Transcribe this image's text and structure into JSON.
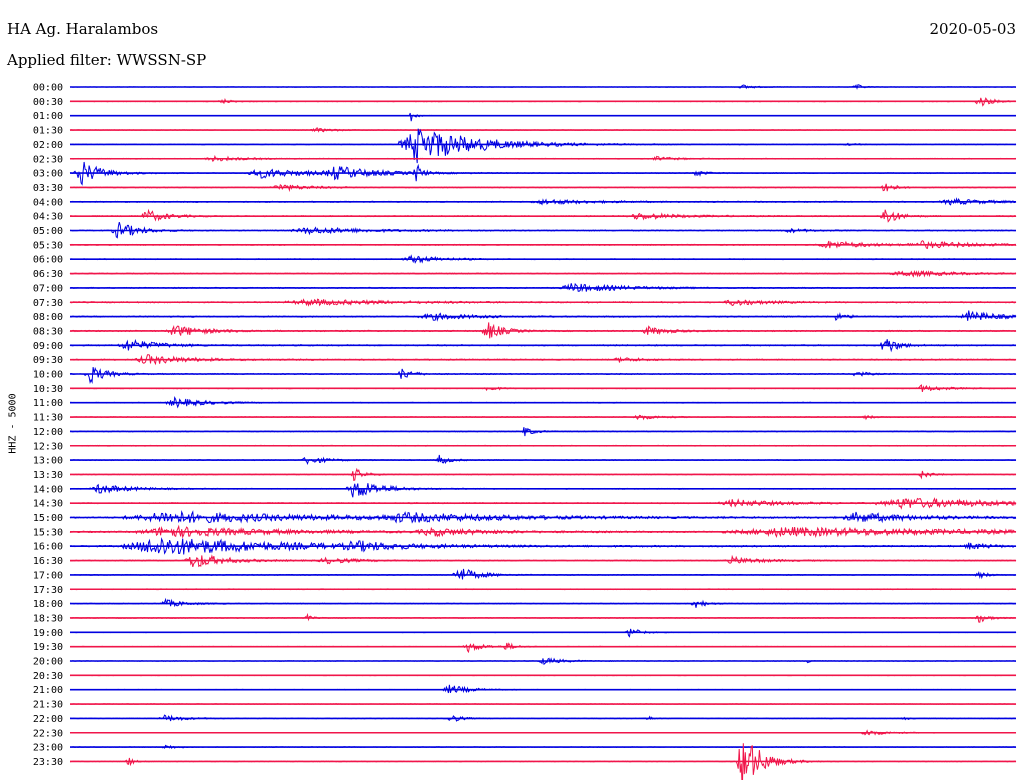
{
  "header": {
    "station": "HA Ag. Haralambos",
    "date": "2020-05-03",
    "filter": "Applied filter: WWSSN-SP",
    "channel": "HHZ - 5000"
  },
  "colors": {
    "odd": "#0000e0",
    "even": "#f0154a"
  },
  "chart_data": {
    "type": "line",
    "title": "",
    "xlabel": "",
    "ylabel": "HHZ - 5000",
    "rows": [
      {
        "label": "00:00",
        "level": 0.2,
        "events": [
          {
            "x": 0.71,
            "amp": 0.5,
            "w": 0.012
          },
          {
            "x": 0.83,
            "amp": 0.6,
            "w": 0.008
          }
        ]
      },
      {
        "label": "00:30",
        "level": 0.4,
        "events": [
          {
            "x": 0.16,
            "amp": 0.5,
            "w": 0.01
          },
          {
            "x": 0.96,
            "amp": 1.6,
            "w": 0.01
          }
        ]
      },
      {
        "label": "01:00",
        "level": 0.2,
        "events": [
          {
            "x": 0.36,
            "amp": 1.4,
            "w": 0.005
          }
        ]
      },
      {
        "label": "01:30",
        "level": 0.3,
        "events": [
          {
            "x": 0.26,
            "amp": 0.4,
            "w": 0.02
          }
        ]
      },
      {
        "label": "02:00",
        "level": 0.3,
        "events": [
          {
            "x": 0.365,
            "amp": 3.8,
            "w": 0.06
          },
          {
            "x": 0.82,
            "amp": 0.3,
            "w": 0.01
          }
        ]
      },
      {
        "label": "02:30",
        "level": 0.4,
        "events": [
          {
            "x": 0.15,
            "amp": 0.5,
            "w": 0.03
          },
          {
            "x": 0.62,
            "amp": 0.4,
            "w": 0.02
          }
        ]
      },
      {
        "label": "03:00",
        "level": 0.4,
        "events": [
          {
            "x": 0.01,
            "amp": 2.8,
            "w": 0.02
          },
          {
            "x": 0.2,
            "amp": 1.0,
            "w": 0.05
          },
          {
            "x": 0.28,
            "amp": 1.3,
            "w": 0.04
          },
          {
            "x": 0.365,
            "amp": 2.5,
            "w": 0.005
          },
          {
            "x": 0.66,
            "amp": 0.7,
            "w": 0.01
          }
        ]
      },
      {
        "label": "03:30",
        "level": 0.4,
        "events": [
          {
            "x": 0.22,
            "amp": 0.7,
            "w": 0.03
          },
          {
            "x": 0.86,
            "amp": 1.8,
            "w": 0.008
          }
        ]
      },
      {
        "label": "04:00",
        "level": 0.5,
        "events": [
          {
            "x": 0.5,
            "amp": 0.5,
            "w": 0.05
          },
          {
            "x": 0.93,
            "amp": 0.6,
            "w": 0.04
          }
        ]
      },
      {
        "label": "04:30",
        "level": 0.5,
        "events": [
          {
            "x": 0.08,
            "amp": 1.3,
            "w": 0.02
          },
          {
            "x": 0.6,
            "amp": 0.7,
            "w": 0.04
          },
          {
            "x": 0.86,
            "amp": 2.2,
            "w": 0.012
          }
        ]
      },
      {
        "label": "05:00",
        "level": 0.5,
        "events": [
          {
            "x": 0.05,
            "amp": 1.8,
            "w": 0.02
          },
          {
            "x": 0.25,
            "amp": 0.7,
            "w": 0.06
          },
          {
            "x": 0.76,
            "amp": 0.4,
            "w": 0.02
          }
        ]
      },
      {
        "label": "05:30",
        "level": 0.5,
        "events": [
          {
            "x": 0.8,
            "amp": 0.8,
            "w": 0.04
          },
          {
            "x": 0.9,
            "amp": 0.7,
            "w": 0.05
          }
        ]
      },
      {
        "label": "06:00",
        "level": 0.4,
        "events": [
          {
            "x": 0.36,
            "amp": 0.8,
            "w": 0.03
          }
        ]
      },
      {
        "label": "06:30",
        "level": 0.5,
        "events": [
          {
            "x": 0.88,
            "amp": 0.6,
            "w": 0.05
          }
        ]
      },
      {
        "label": "07:00",
        "level": 0.5,
        "events": [
          {
            "x": 0.53,
            "amp": 0.9,
            "w": 0.05
          }
        ]
      },
      {
        "label": "07:30",
        "level": 0.6,
        "events": [
          {
            "x": 0.25,
            "amp": 0.6,
            "w": 0.08
          },
          {
            "x": 0.7,
            "amp": 0.7,
            "w": 0.03
          }
        ]
      },
      {
        "label": "08:00",
        "level": 0.6,
        "events": [
          {
            "x": 0.38,
            "amp": 0.7,
            "w": 0.04
          },
          {
            "x": 0.81,
            "amp": 0.8,
            "w": 0.01
          },
          {
            "x": 0.95,
            "amp": 1.1,
            "w": 0.03
          }
        ]
      },
      {
        "label": "08:30",
        "level": 0.6,
        "events": [
          {
            "x": 0.11,
            "amp": 1.2,
            "w": 0.03
          },
          {
            "x": 0.44,
            "amp": 2.0,
            "w": 0.015
          },
          {
            "x": 0.61,
            "amp": 0.9,
            "w": 0.02
          }
        ]
      },
      {
        "label": "09:00",
        "level": 0.6,
        "events": [
          {
            "x": 0.06,
            "amp": 1.2,
            "w": 0.03
          },
          {
            "x": 0.86,
            "amp": 2.2,
            "w": 0.012
          }
        ]
      },
      {
        "label": "09:30",
        "level": 0.6,
        "events": [
          {
            "x": 0.08,
            "amp": 1.0,
            "w": 0.04
          },
          {
            "x": 0.58,
            "amp": 0.5,
            "w": 0.02
          }
        ]
      },
      {
        "label": "10:00",
        "level": 0.5,
        "events": [
          {
            "x": 0.02,
            "amp": 2.0,
            "w": 0.015
          },
          {
            "x": 0.35,
            "amp": 1.4,
            "w": 0.01
          },
          {
            "x": 0.83,
            "amp": 0.7,
            "w": 0.01
          }
        ]
      },
      {
        "label": "10:30",
        "level": 0.4,
        "events": [
          {
            "x": 0.44,
            "amp": 0.6,
            "w": 0.01
          },
          {
            "x": 0.9,
            "amp": 0.7,
            "w": 0.02
          }
        ]
      },
      {
        "label": "11:00",
        "level": 0.4,
        "events": [
          {
            "x": 0.11,
            "amp": 1.0,
            "w": 0.03
          }
        ]
      },
      {
        "label": "11:30",
        "level": 0.4,
        "events": [
          {
            "x": 0.6,
            "amp": 0.5,
            "w": 0.02
          },
          {
            "x": 0.84,
            "amp": 0.4,
            "w": 0.01
          }
        ]
      },
      {
        "label": "12:00",
        "level": 0.4,
        "events": [
          {
            "x": 0.48,
            "amp": 1.0,
            "w": 0.01
          }
        ]
      },
      {
        "label": "12:30",
        "level": 0.4,
        "events": []
      },
      {
        "label": "13:00",
        "level": 0.4,
        "events": [
          {
            "x": 0.25,
            "amp": 0.8,
            "w": 0.02
          },
          {
            "x": 0.39,
            "amp": 1.0,
            "w": 0.01
          }
        ]
      },
      {
        "label": "13:30",
        "level": 0.4,
        "events": [
          {
            "x": 0.3,
            "amp": 1.4,
            "w": 0.01
          },
          {
            "x": 0.9,
            "amp": 0.8,
            "w": 0.01
          }
        ]
      },
      {
        "label": "14:00",
        "level": 0.4,
        "events": [
          {
            "x": 0.03,
            "amp": 1.0,
            "w": 0.03
          },
          {
            "x": 0.3,
            "amp": 2.2,
            "w": 0.025
          }
        ]
      },
      {
        "label": "14:30",
        "level": 0.5,
        "events": [
          {
            "x": 0.7,
            "amp": 0.7,
            "w": 0.05
          },
          {
            "x": 0.88,
            "amp": 1.1,
            "w": 0.1
          }
        ]
      },
      {
        "label": "15:00",
        "level": 0.7,
        "events": [
          {
            "x": 0.1,
            "amp": 1.2,
            "w": 0.15
          },
          {
            "x": 0.35,
            "amp": 0.8,
            "w": 0.1
          },
          {
            "x": 0.83,
            "amp": 1.0,
            "w": 0.06
          }
        ]
      },
      {
        "label": "15:30",
        "level": 0.7,
        "events": [
          {
            "x": 0.1,
            "amp": 1.1,
            "w": 0.1
          },
          {
            "x": 0.38,
            "amp": 0.8,
            "w": 0.05
          },
          {
            "x": 0.75,
            "amp": 0.9,
            "w": 0.2
          }
        ]
      },
      {
        "label": "16:00",
        "level": 0.7,
        "events": [
          {
            "x": 0.09,
            "amp": 2.0,
            "w": 0.12
          },
          {
            "x": 0.3,
            "amp": 0.8,
            "w": 0.04
          },
          {
            "x": 0.95,
            "amp": 0.7,
            "w": 0.02
          }
        ]
      },
      {
        "label": "16:30",
        "level": 0.5,
        "events": [
          {
            "x": 0.13,
            "amp": 1.6,
            "w": 0.03
          },
          {
            "x": 0.27,
            "amp": 0.6,
            "w": 0.03
          },
          {
            "x": 0.7,
            "amp": 0.7,
            "w": 0.03
          }
        ]
      },
      {
        "label": "17:00",
        "level": 0.4,
        "events": [
          {
            "x": 0.41,
            "amp": 1.6,
            "w": 0.02
          },
          {
            "x": 0.96,
            "amp": 0.7,
            "w": 0.01
          }
        ]
      },
      {
        "label": "17:30",
        "level": 0.4,
        "events": []
      },
      {
        "label": "18:00",
        "level": 0.4,
        "events": [
          {
            "x": 0.1,
            "amp": 0.8,
            "w": 0.02
          },
          {
            "x": 0.66,
            "amp": 1.1,
            "w": 0.01
          }
        ]
      },
      {
        "label": "18:30",
        "level": 0.4,
        "events": [
          {
            "x": 0.25,
            "amp": 0.7,
            "w": 0.005
          },
          {
            "x": 0.96,
            "amp": 1.0,
            "w": 0.01
          }
        ]
      },
      {
        "label": "19:00",
        "level": 0.3,
        "events": [
          {
            "x": 0.59,
            "amp": 1.2,
            "w": 0.01
          }
        ]
      },
      {
        "label": "19:30",
        "level": 0.3,
        "events": [
          {
            "x": 0.42,
            "amp": 1.1,
            "w": 0.015
          },
          {
            "x": 0.46,
            "amp": 0.8,
            "w": 0.01
          }
        ]
      },
      {
        "label": "20:00",
        "level": 0.3,
        "events": [
          {
            "x": 0.5,
            "amp": 0.7,
            "w": 0.02
          },
          {
            "x": 0.78,
            "amp": 0.5,
            "w": 0.005
          }
        ]
      },
      {
        "label": "20:30",
        "level": 0.3,
        "events": []
      },
      {
        "label": "21:00",
        "level": 0.3,
        "events": [
          {
            "x": 0.4,
            "amp": 1.0,
            "w": 0.02
          }
        ]
      },
      {
        "label": "21:30",
        "level": 0.3,
        "events": []
      },
      {
        "label": "22:00",
        "level": 0.3,
        "events": [
          {
            "x": 0.1,
            "amp": 0.7,
            "w": 0.02
          },
          {
            "x": 0.4,
            "amp": 1.1,
            "w": 0.01
          },
          {
            "x": 0.61,
            "amp": 0.6,
            "w": 0.005
          },
          {
            "x": 0.88,
            "amp": 0.5,
            "w": 0.005
          }
        ]
      },
      {
        "label": "22:30",
        "level": 0.3,
        "events": [
          {
            "x": 0.84,
            "amp": 0.6,
            "w": 0.02
          }
        ]
      },
      {
        "label": "23:00",
        "level": 0.3,
        "events": [
          {
            "x": 0.1,
            "amp": 0.5,
            "w": 0.01
          }
        ]
      },
      {
        "label": "23:30",
        "level": 0.3,
        "events": [
          {
            "x": 0.06,
            "amp": 1.3,
            "w": 0.005
          },
          {
            "x": 0.71,
            "amp": 6.5,
            "w": 0.018
          }
        ]
      }
    ]
  }
}
